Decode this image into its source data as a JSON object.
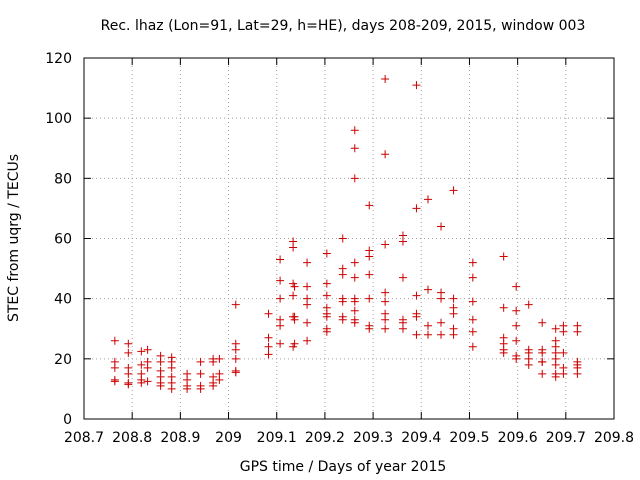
{
  "chart_data": {
    "type": "scatter",
    "title": "Rec. lhaz (Lon=91, Lat=29, h=HE), days 208-209, 2015, window 003",
    "xlabel": "GPS time / Days of year 2015",
    "ylabel": "STEC from uqrg / TECUs",
    "xlim": [
      208.7,
      209.8
    ],
    "ylim": [
      0,
      120
    ],
    "xticks": [
      208.7,
      208.8,
      208.9,
      209,
      209.1,
      209.2,
      209.3,
      209.4,
      209.5,
      209.6,
      209.7,
      209.8
    ],
    "xtick_labels": [
      "208.7",
      "208.8",
      "208.9",
      "209",
      "209.1",
      "209.2",
      "209.3",
      "209.4",
      "209.5",
      "209.6",
      "209.7",
      "209.8"
    ],
    "yticks": [
      0,
      20,
      40,
      60,
      80,
      100,
      120
    ],
    "ytick_labels": [
      "0",
      "20",
      "40",
      "60",
      "80",
      "100",
      "120"
    ],
    "grid": true,
    "marker": "+",
    "color": "#cc0000",
    "series": [
      {
        "x": [
          208.764,
          208.764,
          208.764,
          208.764,
          208.764,
          208.792,
          208.792,
          208.792,
          208.792,
          208.792,
          208.792,
          208.819,
          208.819,
          208.819,
          208.819,
          208.819,
          208.832,
          208.832,
          208.832,
          208.832,
          208.859,
          208.859,
          208.859,
          208.859,
          208.859,
          208.859,
          208.882,
          208.882,
          208.882,
          208.882,
          208.882,
          208.882,
          208.914,
          208.914,
          208.914,
          208.914,
          208.942,
          208.942,
          208.942,
          208.942,
          208.968,
          208.968,
          208.968,
          208.968,
          208.968,
          208.981,
          208.981,
          208.981,
          209.015,
          209.015,
          209.015,
          209.015,
          209.015,
          209.015,
          209.083,
          209.083,
          209.083,
          209.083,
          209.107,
          209.107,
          209.107,
          209.107,
          209.107,
          209.107,
          209.134,
          209.134,
          209.134,
          209.134,
          209.134,
          209.134,
          209.137,
          209.137,
          209.137,
          209.137,
          209.163,
          209.163,
          209.163,
          209.163,
          209.163,
          209.163,
          209.204,
          209.204,
          209.204,
          209.204,
          209.204,
          209.204,
          209.204,
          209.204,
          209.237,
          209.237,
          209.237,
          209.237,
          209.237,
          209.237,
          209.237,
          209.262,
          209.262,
          209.262,
          209.262,
          209.262,
          209.262,
          209.262,
          209.262,
          209.262,
          209.262,
          209.292,
          209.292,
          209.292,
          209.292,
          209.292,
          209.292,
          209.292,
          209.325,
          209.325,
          209.325,
          209.325,
          209.325,
          209.325,
          209.325,
          209.325,
          209.362,
          209.362,
          209.362,
          209.362,
          209.362,
          209.362,
          209.39,
          209.39,
          209.39,
          209.39,
          209.39,
          209.39,
          209.414,
          209.414,
          209.414,
          209.414,
          209.441,
          209.441,
          209.441,
          209.441,
          209.441,
          209.467,
          209.467,
          209.467,
          209.467,
          209.467,
          209.467,
          209.507,
          209.507,
          209.507,
          209.507,
          209.507,
          209.507,
          209.571,
          209.571,
          209.571,
          209.571,
          209.571,
          209.571,
          209.597,
          209.597,
          209.597,
          209.597,
          209.597,
          209.597,
          209.623,
          209.623,
          209.623,
          209.623,
          209.623,
          209.651,
          209.651,
          209.651,
          209.651,
          209.651,
          209.651,
          209.679,
          209.679,
          209.679,
          209.679,
          209.679,
          209.679,
          209.679,
          209.679,
          209.695,
          209.695,
          209.695,
          209.695,
          209.695,
          209.724,
          209.724,
          209.724,
          209.724,
          209.724,
          209.724
        ],
        "y": [
          26,
          19,
          17,
          13,
          12.5,
          25,
          22,
          17,
          15,
          12,
          11.5,
          22.5,
          18,
          15,
          13,
          12,
          23,
          19,
          17,
          12.5,
          21,
          19,
          16,
          14,
          12,
          11,
          20.5,
          19,
          17,
          14,
          12,
          10,
          15,
          13,
          11,
          10,
          19,
          15,
          11,
          10,
          20,
          19,
          14,
          12,
          11,
          20,
          15,
          13,
          38,
          25,
          23,
          20,
          16,
          15.5,
          35,
          27,
          24,
          21.5,
          53,
          46,
          40,
          33,
          31,
          25,
          59,
          57,
          45,
          41,
          34,
          24,
          44,
          34,
          33,
          25,
          52,
          44,
          40,
          38,
          32,
          26,
          55,
          45,
          41,
          37,
          35,
          34,
          30,
          29,
          60,
          50,
          48,
          40,
          39,
          34,
          33,
          96,
          90,
          80,
          52,
          47,
          40,
          39,
          36,
          33,
          32,
          71,
          56,
          54,
          48,
          40,
          31,
          30,
          113,
          88,
          58,
          42,
          39,
          35,
          33,
          30,
          61,
          59,
          47,
          33,
          32,
          30,
          111,
          70,
          41,
          35,
          34,
          28,
          73,
          43,
          31,
          28,
          64,
          42,
          40,
          32,
          28,
          76,
          40,
          37,
          35,
          30,
          28,
          52,
          47,
          39,
          33,
          29,
          24,
          54,
          37,
          27,
          25,
          23,
          22,
          44,
          36,
          31,
          26,
          21,
          20,
          38,
          23,
          22,
          20,
          18,
          32,
          23,
          22,
          19,
          19,
          15,
          30,
          26,
          24,
          22,
          20,
          18,
          15,
          14,
          31,
          29,
          22,
          17,
          15,
          31,
          29,
          19,
          18,
          17,
          15
        ]
      }
    ]
  }
}
